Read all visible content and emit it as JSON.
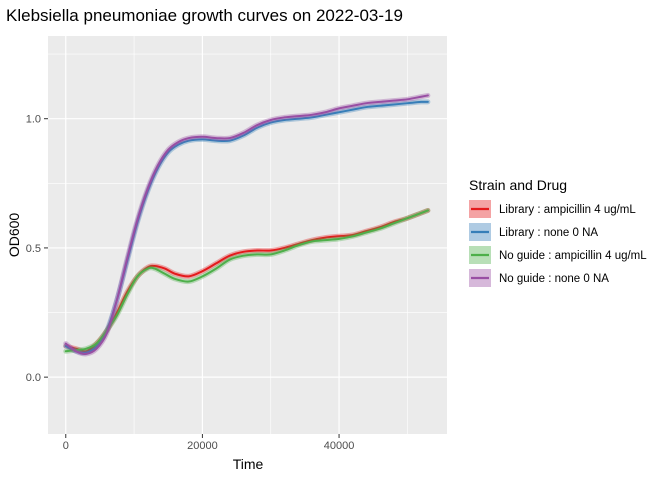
{
  "chart_data": {
    "type": "line",
    "title": "Klebsiella pneumoniae growth curves on 2022-03-19",
    "xlabel": "Time",
    "ylabel": "OD600",
    "xlim": [
      -2600,
      55800
    ],
    "ylim": [
      -0.22,
      1.32
    ],
    "x_ticks": [
      0,
      20000,
      40000
    ],
    "x_tick_labels": [
      "0",
      "20000",
      "40000"
    ],
    "y_ticks": [
      0.0,
      0.5,
      1.0
    ],
    "y_tick_labels": [
      "0.0",
      "0.5",
      "1.0"
    ],
    "x_minor_ticks": [
      10000,
      30000,
      50000
    ],
    "y_minor_ticks": [
      0.25,
      0.75,
      1.25
    ],
    "grid": true,
    "legend": {
      "title": "Strain and Drug",
      "position": "right"
    },
    "series": [
      {
        "name": "Library : ampicillin 4 ug/mL",
        "color": "#e41a1c",
        "x": [
          0,
          1500,
          3000,
          4500,
          6000,
          7500,
          9000,
          10500,
          12000,
          13000,
          14500,
          16000,
          18000,
          20000,
          22000,
          24000,
          26000,
          28000,
          30000,
          32000,
          34000,
          36000,
          38000,
          40000,
          42000,
          44000,
          46000,
          48000,
          50000,
          52000,
          53000
        ],
        "y": [
          0.12,
          0.11,
          0.1,
          0.13,
          0.18,
          0.25,
          0.33,
          0.39,
          0.425,
          0.43,
          0.42,
          0.4,
          0.39,
          0.41,
          0.44,
          0.47,
          0.485,
          0.49,
          0.49,
          0.5,
          0.515,
          0.53,
          0.54,
          0.545,
          0.55,
          0.565,
          0.58,
          0.6,
          0.615,
          0.635,
          0.645
        ]
      },
      {
        "name": "Library : none 0 NA",
        "color": "#377eb8",
        "x": [
          0,
          1500,
          3000,
          4500,
          6000,
          7500,
          9000,
          10500,
          12000,
          13500,
          15000,
          16500,
          18000,
          20000,
          22000,
          24000,
          26000,
          28000,
          30000,
          32000,
          34000,
          36000,
          38000,
          40000,
          42000,
          44000,
          46000,
          48000,
          50000,
          52000,
          53000
        ],
        "y": [
          0.12,
          0.1,
          0.095,
          0.12,
          0.18,
          0.3,
          0.45,
          0.6,
          0.72,
          0.81,
          0.87,
          0.9,
          0.915,
          0.92,
          0.915,
          0.915,
          0.935,
          0.965,
          0.985,
          0.995,
          1.0,
          1.005,
          1.015,
          1.025,
          1.035,
          1.045,
          1.05,
          1.055,
          1.06,
          1.065,
          1.065
        ]
      },
      {
        "name": "No guide : ampicillin 4 ug/mL",
        "color": "#4daf4a",
        "x": [
          0,
          1500,
          3000,
          4500,
          6000,
          7500,
          9000,
          10500,
          12000,
          13000,
          14500,
          16000,
          18000,
          20000,
          22000,
          24000,
          26000,
          28000,
          30000,
          32000,
          34000,
          36000,
          38000,
          40000,
          42000,
          44000,
          46000,
          48000,
          50000,
          52000,
          53000
        ],
        "y": [
          0.1,
          0.105,
          0.11,
          0.13,
          0.18,
          0.24,
          0.32,
          0.39,
          0.42,
          0.42,
          0.4,
          0.38,
          0.37,
          0.39,
          0.42,
          0.455,
          0.47,
          0.475,
          0.475,
          0.49,
          0.51,
          0.525,
          0.53,
          0.535,
          0.545,
          0.56,
          0.575,
          0.595,
          0.615,
          0.635,
          0.645
        ]
      },
      {
        "name": "No guide : none 0 NA",
        "color": "#984ea3",
        "x": [
          0,
          1500,
          3000,
          4500,
          6000,
          7500,
          9000,
          10500,
          12000,
          13500,
          15000,
          16500,
          18000,
          20000,
          22000,
          24000,
          26000,
          28000,
          30000,
          32000,
          34000,
          36000,
          38000,
          40000,
          42000,
          44000,
          46000,
          48000,
          50000,
          52000,
          53000
        ],
        "y": [
          0.13,
          0.1,
          0.09,
          0.11,
          0.17,
          0.3,
          0.46,
          0.61,
          0.73,
          0.82,
          0.88,
          0.91,
          0.925,
          0.93,
          0.925,
          0.925,
          0.945,
          0.975,
          0.995,
          1.005,
          1.01,
          1.015,
          1.025,
          1.04,
          1.05,
          1.06,
          1.065,
          1.07,
          1.075,
          1.085,
          1.09
        ]
      }
    ]
  }
}
